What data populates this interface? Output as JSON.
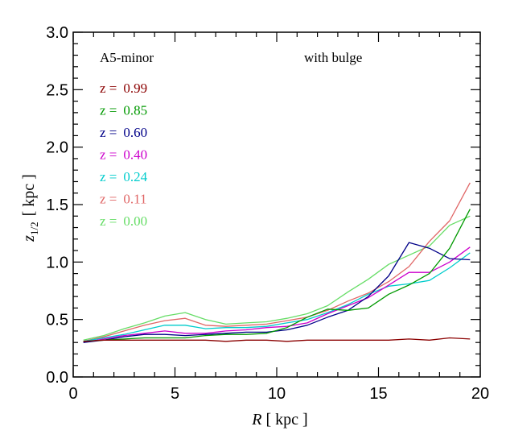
{
  "chart_data": {
    "type": "line",
    "title": "",
    "annotations": {
      "left": "A5-minor",
      "right": "with bulge"
    },
    "xlabel": {
      "var": "R",
      "unit": "[ kpc ]"
    },
    "ylabel": {
      "var": "z",
      "sub": "1/2",
      "unit": "[ kpc ]"
    },
    "xlim": [
      0,
      20
    ],
    "ylim": [
      0,
      3
    ],
    "xticks": [
      "0",
      "5",
      "10",
      "15",
      "20"
    ],
    "yticks": [
      "0.0",
      "0.5",
      "1.0",
      "1.5",
      "2.0",
      "2.5",
      "3.0"
    ],
    "grid": false,
    "legend_position": "top-left",
    "legend_prefix": "z =",
    "x": [
      0.5,
      1.5,
      2.5,
      3.5,
      4.5,
      5.5,
      6.5,
      7.5,
      8.5,
      9.5,
      10.5,
      11.5,
      12.5,
      13.5,
      14.5,
      15.5,
      16.5,
      17.5,
      18.5,
      19.5
    ],
    "series": [
      {
        "name": "0.99",
        "color": "#8b0000",
        "values": [
          0.31,
          0.32,
          0.32,
          0.32,
          0.32,
          0.32,
          0.32,
          0.31,
          0.32,
          0.32,
          0.31,
          0.32,
          0.32,
          0.32,
          0.32,
          0.32,
          0.33,
          0.32,
          0.34,
          0.33
        ]
      },
      {
        "name": "0.85",
        "color": "#009900",
        "values": [
          0.31,
          0.32,
          0.33,
          0.34,
          0.34,
          0.34,
          0.36,
          0.37,
          0.37,
          0.38,
          0.43,
          0.52,
          0.59,
          0.58,
          0.6,
          0.72,
          0.8,
          0.9,
          1.12,
          1.46
        ]
      },
      {
        "name": "0.60",
        "color": "#000088",
        "values": [
          0.3,
          0.32,
          0.35,
          0.37,
          0.37,
          0.36,
          0.37,
          0.38,
          0.39,
          0.39,
          0.41,
          0.45,
          0.52,
          0.58,
          0.7,
          0.88,
          1.17,
          1.12,
          1.03,
          1.02
        ]
      },
      {
        "name": "0.40",
        "color": "#cc00cc",
        "values": [
          0.3,
          0.33,
          0.36,
          0.38,
          0.4,
          0.38,
          0.38,
          0.4,
          0.41,
          0.43,
          0.44,
          0.47,
          0.55,
          0.62,
          0.69,
          0.8,
          0.91,
          0.91,
          1.0,
          1.13
        ]
      },
      {
        "name": "0.24",
        "color": "#00cccc",
        "values": [
          0.31,
          0.34,
          0.37,
          0.41,
          0.45,
          0.45,
          0.42,
          0.43,
          0.43,
          0.44,
          0.47,
          0.5,
          0.56,
          0.63,
          0.72,
          0.79,
          0.81,
          0.84,
          0.95,
          1.08
        ]
      },
      {
        "name": "0.11",
        "color": "#e06666",
        "values": [
          0.31,
          0.35,
          0.4,
          0.45,
          0.49,
          0.51,
          0.45,
          0.44,
          0.45,
          0.46,
          0.49,
          0.52,
          0.58,
          0.66,
          0.73,
          0.83,
          0.96,
          1.18,
          1.36,
          1.69
        ]
      },
      {
        "name": "0.00",
        "color": "#66dd66",
        "values": [
          0.32,
          0.36,
          0.42,
          0.47,
          0.53,
          0.56,
          0.5,
          0.46,
          0.47,
          0.48,
          0.51,
          0.55,
          0.62,
          0.74,
          0.85,
          0.98,
          1.06,
          1.14,
          1.32,
          1.4
        ]
      }
    ]
  }
}
